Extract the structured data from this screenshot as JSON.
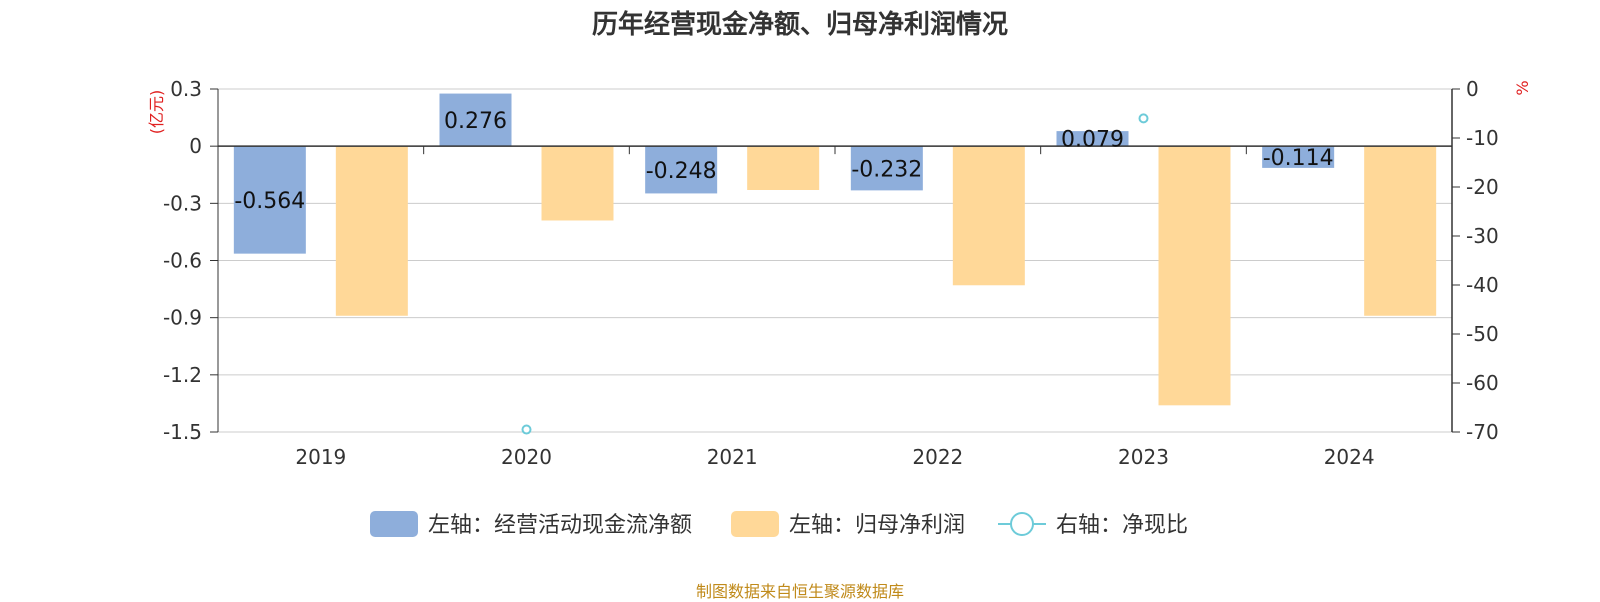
{
  "chart_data": {
    "type": "bar",
    "title": "历年经营现金净额、归母净利润情况",
    "categories": [
      "2019",
      "2020",
      "2021",
      "2022",
      "2023",
      "2024"
    ],
    "left_axis": {
      "unit": "(亿元)",
      "ylim": [
        -1.5,
        0.3
      ],
      "ticks": [
        "0.3",
        "0",
        "-0.3",
        "-0.6",
        "-0.9",
        "-1.2",
        "-1.5"
      ]
    },
    "right_axis": {
      "unit": "%",
      "ylim": [
        -70,
        0
      ],
      "ticks": [
        "0",
        "-10",
        "-20",
        "-30",
        "-40",
        "-50",
        "-60",
        "-70"
      ]
    },
    "series": [
      {
        "name": "左轴：经营活动现金流净额",
        "type": "bar",
        "axis": "left",
        "color": "#8eaedb",
        "values": [
          -0.564,
          0.276,
          -0.248,
          -0.232,
          0.079,
          -0.114
        ],
        "labels": [
          "-0.564",
          "0.276",
          "-0.248",
          "-0.232",
          "0.079",
          "-0.114"
        ]
      },
      {
        "name": "左轴：归母净利润",
        "type": "bar",
        "axis": "left",
        "color": "#ffd898",
        "values": [
          -0.89,
          -0.39,
          -0.23,
          -0.73,
          -1.36,
          -0.89
        ]
      },
      {
        "name": "右轴：净现比",
        "type": "line",
        "axis": "right",
        "color": "#6dcbd9",
        "values": [
          null,
          -69.5,
          null,
          null,
          -6,
          null
        ]
      }
    ],
    "grid": true,
    "legend_position": "bottom"
  },
  "source": "制图数据来自恒生聚源数据库"
}
